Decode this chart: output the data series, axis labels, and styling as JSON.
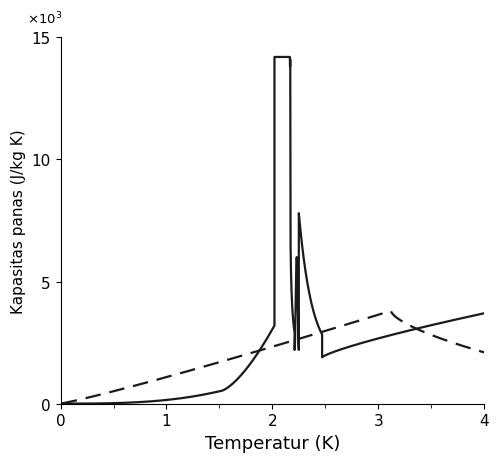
{
  "title": "",
  "xlabel": "Temperatur (K)",
  "ylabel": "Kapasitas panas (J/kg K)",
  "xlim": [
    0,
    4.0
  ],
  "ylim": [
    0,
    15000
  ],
  "ytick_labels": [
    "0",
    "5",
    "10",
    "15"
  ],
  "ytick_values": [
    0,
    5000,
    10000,
    15000
  ],
  "xtick_values": [
    0,
    1.0,
    2.0,
    3.0,
    4.0
  ],
  "lambda_point": 2.17,
  "background_color": "#ffffff",
  "line_color": "#1a1a1a",
  "dashed_color": "#1a1a1a",
  "xlabel_fontsize": 13,
  "ylabel_fontsize": 11,
  "tick_fontsize": 11
}
